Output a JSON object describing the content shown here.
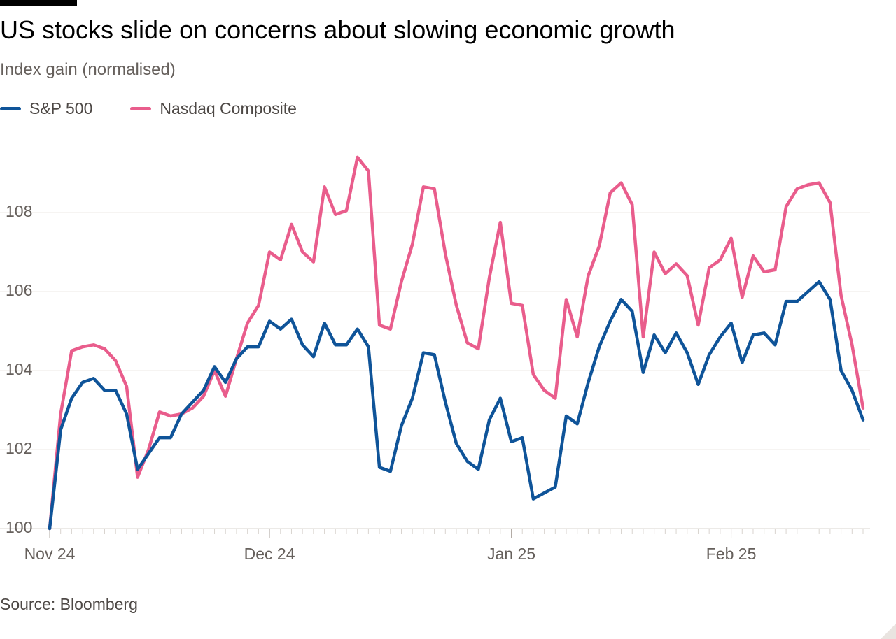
{
  "title": "US stocks slide on concerns about slowing economic growth",
  "subtitle": "Index gain (normalised)",
  "source": "Source: Bloomberg",
  "colors": {
    "sp500": "#0f5499",
    "nasdaq": "#e95d8c",
    "grid": "#eeeae6",
    "text": "#66605c"
  },
  "chart_data": {
    "type": "line",
    "ylim": [
      100,
      109.5
    ],
    "yticks": [
      100,
      102,
      104,
      106,
      108
    ],
    "grid": true,
    "legend_position": "top-left",
    "x_labels": [
      {
        "label": "Nov 24",
        "index": 0
      },
      {
        "label": "Dec 24",
        "index": 20
      },
      {
        "label": "Jan 25",
        "index": 42
      },
      {
        "label": "Feb 25",
        "index": 62
      }
    ],
    "series": [
      {
        "name": "S&P 500",
        "color": "#0f5499",
        "values": [
          100,
          102.5,
          103.3,
          103.7,
          103.8,
          103.5,
          103.5,
          102.9,
          101.5,
          101.9,
          102.3,
          102.3,
          102.9,
          103.2,
          103.5,
          104.1,
          103.7,
          104.3,
          104.6,
          104.6,
          105.25,
          105.05,
          105.3,
          104.65,
          104.35,
          105.2,
          104.65,
          104.65,
          105.05,
          104.6,
          101.55,
          101.45,
          102.6,
          103.3,
          104.45,
          104.4,
          103.2,
          102.15,
          101.7,
          101.5,
          102.75,
          103.3,
          102.2,
          102.3,
          100.75,
          100.9,
          101.05,
          102.85,
          102.65,
          103.7,
          104.6,
          105.25,
          105.8,
          105.5,
          103.95,
          104.9,
          104.45,
          104.95,
          104.45,
          103.65,
          104.4,
          104.85,
          105.2,
          104.2,
          104.9,
          104.95,
          104.65,
          105.75,
          105.75,
          106.0,
          106.25,
          105.8,
          104.0,
          103.5,
          102.75
        ]
      },
      {
        "name": "Nasdaq Composite",
        "color": "#e95d8c",
        "values": [
          100,
          102.9,
          104.5,
          104.6,
          104.65,
          104.55,
          104.25,
          103.6,
          101.3,
          102.0,
          102.95,
          102.85,
          102.9,
          103.05,
          103.35,
          104.0,
          103.35,
          104.3,
          105.2,
          105.65,
          107.0,
          106.8,
          107.7,
          107.0,
          106.75,
          108.65,
          107.95,
          108.05,
          109.4,
          109.05,
          105.15,
          105.05,
          106.25,
          107.2,
          108.65,
          108.6,
          106.95,
          105.65,
          104.7,
          104.55,
          106.35,
          107.75,
          105.7,
          105.65,
          103.9,
          103.5,
          103.3,
          105.8,
          104.85,
          106.4,
          107.15,
          108.5,
          108.75,
          108.2,
          104.85,
          107.0,
          106.45,
          106.7,
          106.4,
          105.15,
          106.6,
          106.8,
          107.35,
          105.85,
          106.9,
          106.5,
          106.55,
          108.15,
          108.6,
          108.7,
          108.75,
          108.25,
          105.9,
          104.65,
          103.05
        ]
      }
    ]
  }
}
